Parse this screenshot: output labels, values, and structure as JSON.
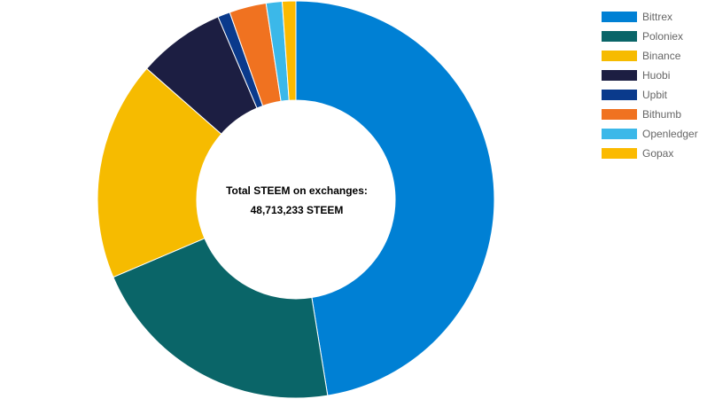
{
  "chart_data": {
    "type": "pie",
    "style": "doughnut",
    "center_title": "Total STEEM on exchanges:",
    "center_value": "48,713,233 STEEM",
    "legend_position": "top-right",
    "series": [
      {
        "name": "Bittrex",
        "value": 47.3,
        "color": "#0080D4"
      },
      {
        "name": "Poloniex",
        "value": 21.1,
        "color": "#0A6568"
      },
      {
        "name": "Binance",
        "value": 17.8,
        "color": "#F6BB00"
      },
      {
        "name": "Huobi",
        "value": 7.1,
        "color": "#1C1E42"
      },
      {
        "name": "Upbit",
        "value": 1.0,
        "color": "#0A3A8C"
      },
      {
        "name": "Bithumb",
        "value": 3.0,
        "color": "#F07220"
      },
      {
        "name": "Openledger",
        "value": 1.3,
        "color": "#3BB8E9"
      },
      {
        "name": "Gopax",
        "value": 1.1,
        "color": "#FBBA00"
      }
    ]
  }
}
